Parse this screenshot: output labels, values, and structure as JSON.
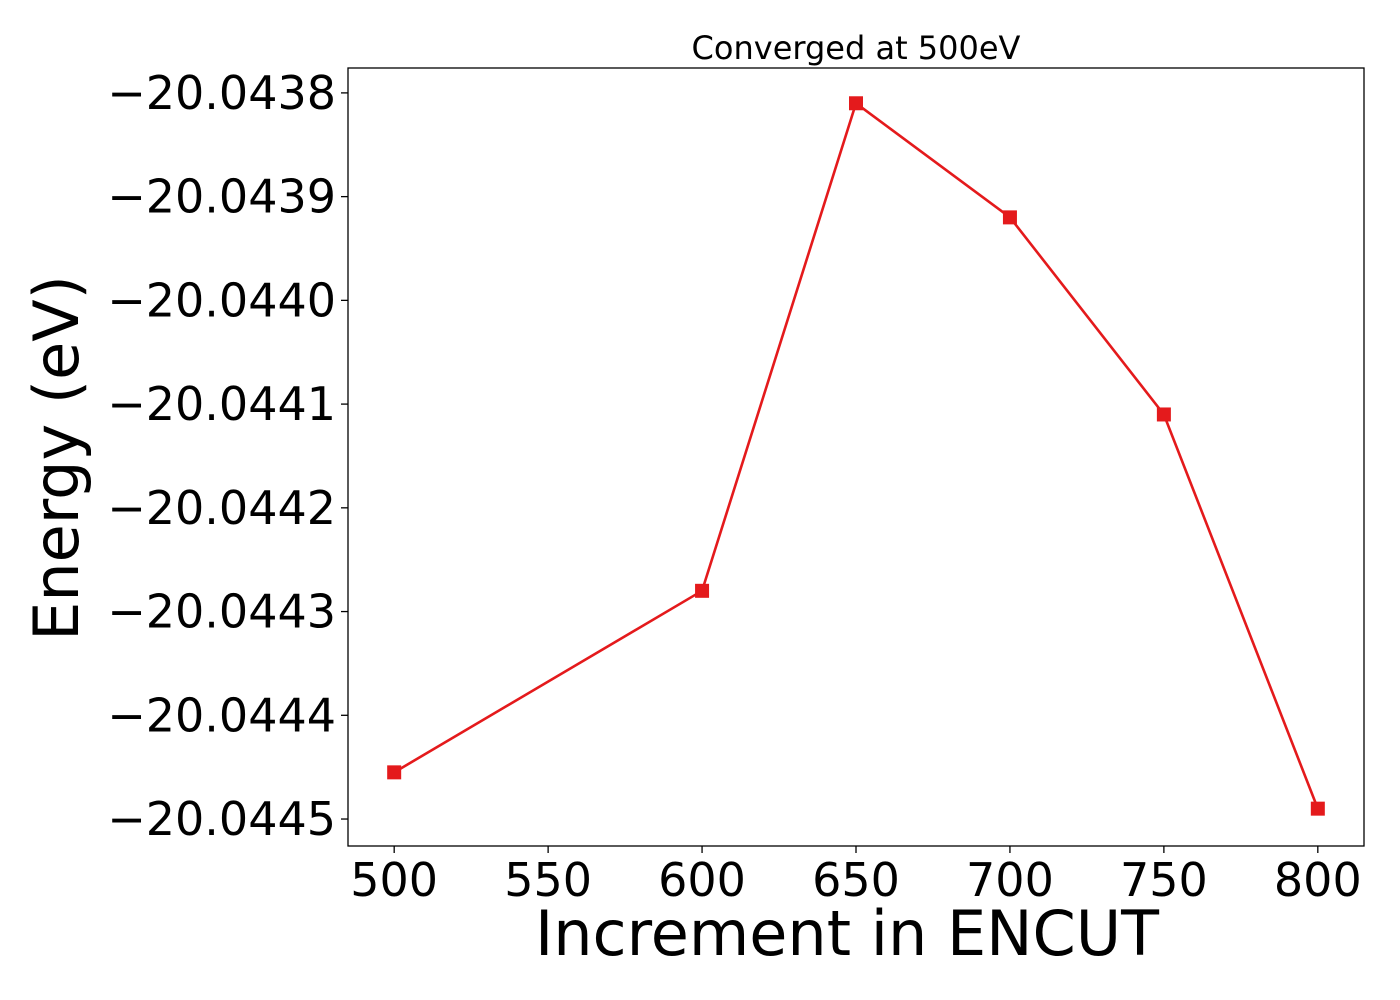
{
  "chart_data": {
    "type": "line",
    "title": "Converged at 500eV",
    "xlabel": "Increment in ENCUT",
    "ylabel": "Energy (eV)",
    "x": [
      500,
      600,
      650,
      700,
      750,
      800
    ],
    "series": [
      {
        "values": [
          -20.044455,
          -20.04428,
          -20.04381,
          -20.04392,
          -20.04411,
          -20.04449
        ],
        "color": "#e41a1c",
        "marker": "square"
      }
    ],
    "xlim": [
      485,
      815
    ],
    "ylim": [
      -20.044526,
      -20.043776
    ],
    "xticks": [
      500,
      550,
      600,
      650,
      700,
      750,
      800
    ],
    "xtick_labels": [
      "500",
      "550",
      "600",
      "650",
      "700",
      "750",
      "800"
    ],
    "yticks": [
      -20.0438,
      -20.0439,
      -20.044,
      -20.0441,
      -20.0442,
      -20.0443,
      -20.0444,
      -20.0445
    ],
    "ytick_labels": [
      "−20.0438",
      "−20.0439",
      "−20.0440",
      "−20.0441",
      "−20.0442",
      "−20.0443",
      "−20.0444",
      "−20.0445"
    ],
    "grid": false,
    "legend": "none"
  }
}
